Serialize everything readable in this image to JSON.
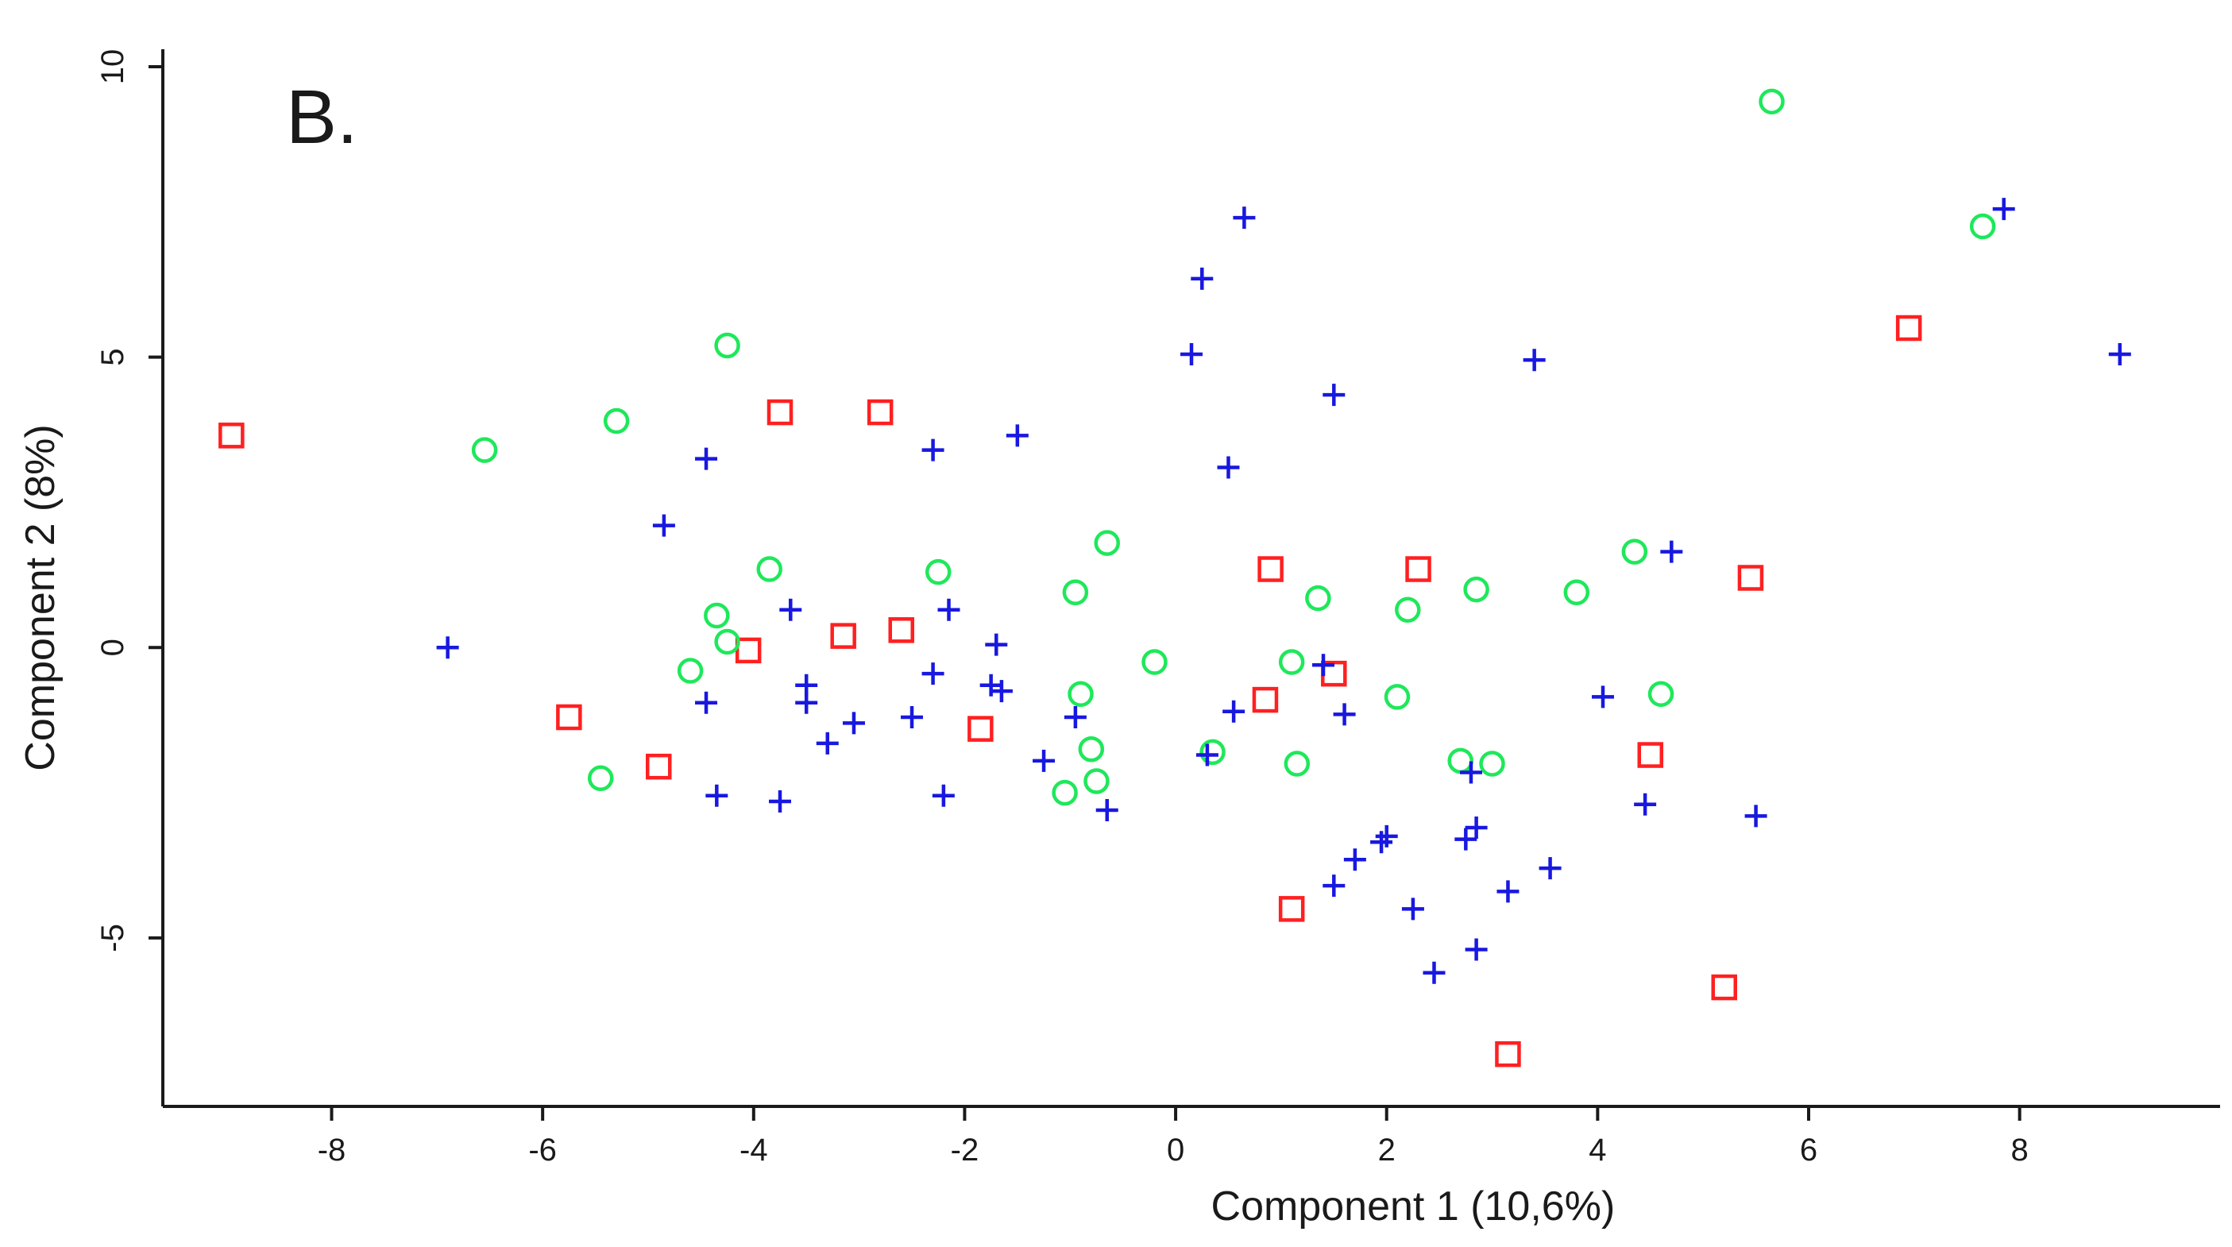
{
  "chart_data": {
    "type": "scatter",
    "panel_label": "B.",
    "xlabel": "Component 1 (10,6%)",
    "ylabel": "Component 2 (8%)",
    "xlim": [
      -9.6,
      9.9
    ],
    "ylim": [
      -7.9,
      10.3
    ],
    "x_ticks": [
      -8,
      -6,
      -4,
      -2,
      0,
      2,
      4,
      6,
      8
    ],
    "y_ticks": [
      -5,
      0,
      5,
      10
    ],
    "x_tick_labels": [
      "-8",
      "-6",
      "-4",
      "-2",
      "0",
      "2",
      "4",
      "6",
      "8"
    ],
    "y_tick_labels": [
      "-5",
      "0",
      "5",
      "10"
    ],
    "grid": false,
    "legend": "none",
    "series": [
      {
        "marker": "square",
        "color": "#ff2020",
        "points": [
          [
            -8.95,
            3.65
          ],
          [
            -5.75,
            -1.2
          ],
          [
            -4.9,
            -2.05
          ],
          [
            -4.05,
            -0.05
          ],
          [
            -3.75,
            4.05
          ],
          [
            -3.15,
            0.2
          ],
          [
            -2.8,
            4.05
          ],
          [
            -2.6,
            0.3
          ],
          [
            -1.85,
            -1.4
          ],
          [
            0.85,
            -0.9
          ],
          [
            0.9,
            1.35
          ],
          [
            1.1,
            -4.5
          ],
          [
            1.5,
            -0.45
          ],
          [
            2.3,
            1.35
          ],
          [
            3.15,
            -7.0
          ],
          [
            4.5,
            -1.85
          ],
          [
            5.2,
            -5.85
          ],
          [
            5.45,
            1.2
          ],
          [
            6.95,
            5.5
          ]
        ]
      },
      {
        "marker": "circle",
        "color": "#1ee85a",
        "points": [
          [
            -6.55,
            3.4
          ],
          [
            -5.3,
            3.9
          ],
          [
            -5.45,
            -2.25
          ],
          [
            -4.6,
            -0.4
          ],
          [
            -4.35,
            0.55
          ],
          [
            -4.25,
            0.1
          ],
          [
            -4.25,
            5.2
          ],
          [
            -3.85,
            1.35
          ],
          [
            -2.25,
            1.3
          ],
          [
            -1.05,
            -2.5
          ],
          [
            -0.95,
            0.95
          ],
          [
            -0.9,
            -0.8
          ],
          [
            -0.8,
            -1.75
          ],
          [
            -0.75,
            -2.3
          ],
          [
            -0.65,
            1.8
          ],
          [
            -0.2,
            -0.25
          ],
          [
            0.35,
            -1.8
          ],
          [
            1.1,
            -0.25
          ],
          [
            1.15,
            -2.0
          ],
          [
            1.35,
            0.85
          ],
          [
            2.1,
            -0.85
          ],
          [
            2.2,
            0.65
          ],
          [
            2.7,
            -1.95
          ],
          [
            2.85,
            1.0
          ],
          [
            3.0,
            -2.0
          ],
          [
            3.8,
            0.95
          ],
          [
            4.35,
            1.65
          ],
          [
            4.6,
            -0.8
          ],
          [
            5.65,
            9.4
          ],
          [
            7.65,
            7.25
          ]
        ]
      },
      {
        "marker": "plus",
        "color": "#1818e0",
        "points": [
          [
            -6.9,
            0.0
          ],
          [
            -4.85,
            2.1
          ],
          [
            -4.45,
            3.25
          ],
          [
            -4.45,
            -0.95
          ],
          [
            -4.35,
            -2.55
          ],
          [
            -3.75,
            -2.65
          ],
          [
            -3.65,
            0.65
          ],
          [
            -3.5,
            -0.65
          ],
          [
            -3.5,
            -0.95
          ],
          [
            -3.3,
            -1.65
          ],
          [
            -3.05,
            -1.3
          ],
          [
            -2.5,
            -1.2
          ],
          [
            -2.3,
            3.4
          ],
          [
            -2.3,
            -0.45
          ],
          [
            -2.2,
            -2.55
          ],
          [
            -2.15,
            0.65
          ],
          [
            -1.75,
            -0.65
          ],
          [
            -1.7,
            0.05
          ],
          [
            -1.65,
            -0.75
          ],
          [
            -1.5,
            3.65
          ],
          [
            -1.25,
            -1.95
          ],
          [
            -0.95,
            -1.2
          ],
          [
            -0.65,
            -2.8
          ],
          [
            0.15,
            5.05
          ],
          [
            0.25,
            6.35
          ],
          [
            0.3,
            -1.85
          ],
          [
            0.5,
            3.1
          ],
          [
            0.55,
            -1.1
          ],
          [
            0.65,
            7.4
          ],
          [
            1.4,
            -0.3
          ],
          [
            1.5,
            -4.1
          ],
          [
            1.5,
            4.35
          ],
          [
            1.6,
            -1.15
          ],
          [
            1.7,
            -3.65
          ],
          [
            1.95,
            -3.35
          ],
          [
            2.0,
            -3.25
          ],
          [
            2.25,
            -4.5
          ],
          [
            2.45,
            -5.6
          ],
          [
            2.75,
            -3.3
          ],
          [
            2.8,
            -2.15
          ],
          [
            2.85,
            -5.2
          ],
          [
            2.85,
            -3.1
          ],
          [
            3.15,
            -4.2
          ],
          [
            3.4,
            4.95
          ],
          [
            3.55,
            -3.8
          ],
          [
            4.05,
            -0.85
          ],
          [
            4.45,
            -2.7
          ],
          [
            4.7,
            1.65
          ],
          [
            5.5,
            -2.9
          ],
          [
            7.85,
            7.55
          ],
          [
            8.95,
            5.05
          ]
        ]
      }
    ]
  }
}
